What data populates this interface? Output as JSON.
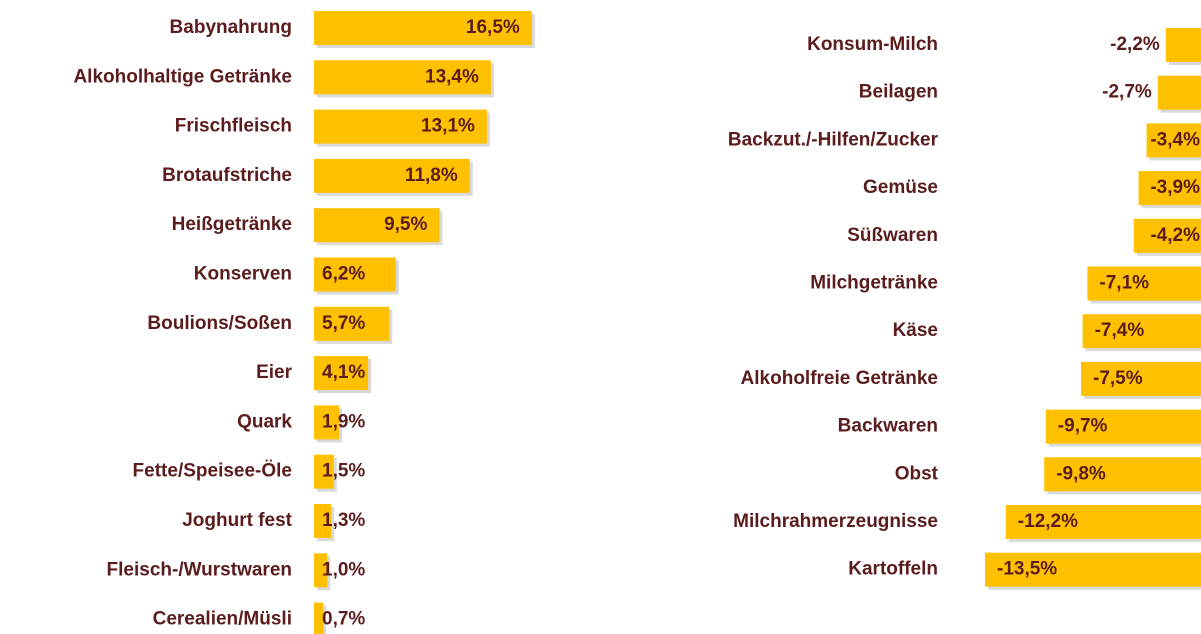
{
  "chart_data": [
    {
      "type": "hbar",
      "color": "#ffc000",
      "xlim": [
        0,
        20
      ],
      "categories": [
        "Babynahrung",
        "Alkoholhaltige Getränke",
        "Frischfleisch",
        "Brotaufstriche",
        "Heißgetränke",
        "Konserven",
        "Boulions/Soßen",
        "Eier",
        "Quark",
        "Fette/Speisee-Öle",
        "Joghurt fest",
        "Fleisch-/Wurstwaren",
        "Cerealien/Müsli"
      ],
      "values": [
        16.5,
        13.4,
        13.1,
        11.8,
        9.5,
        6.2,
        5.7,
        4.1,
        1.9,
        1.5,
        1.3,
        1.0,
        0.7
      ],
      "value_labels": [
        "16,5%",
        "13,4%",
        "13,1%",
        "11,8%",
        "9,5%",
        "6,2%",
        "5,7%",
        "4,1%",
        "1,9%",
        "1,5%",
        "1,3%",
        "1,0%",
        "0,7%"
      ]
    },
    {
      "type": "hbar",
      "color": "#ffc000",
      "xlim": [
        -15,
        0
      ],
      "categories": [
        "Konsum-Milch",
        "Beilagen",
        "Backzut./-Hilfen/Zucker",
        "Gemüse",
        "Süßwaren",
        "Milchgetränke",
        "Käse",
        "Alkoholfreie Getränke",
        "Backwaren",
        "Obst",
        "Milchrahmerzeugnisse",
        "Kartoffeln"
      ],
      "values": [
        -2.2,
        -2.7,
        -3.4,
        -3.9,
        -4.2,
        -7.1,
        -7.4,
        -7.5,
        -9.7,
        -9.8,
        -12.2,
        -13.5
      ],
      "value_labels": [
        "-2,2%",
        "-2,7%",
        "-3,4%",
        "-3,9%",
        "-4,2%",
        "-7,1%",
        "-7,4%",
        "-7,5%",
        "-9,7%",
        "-9,8%",
        "-12,2%",
        "-13,5%"
      ]
    }
  ]
}
